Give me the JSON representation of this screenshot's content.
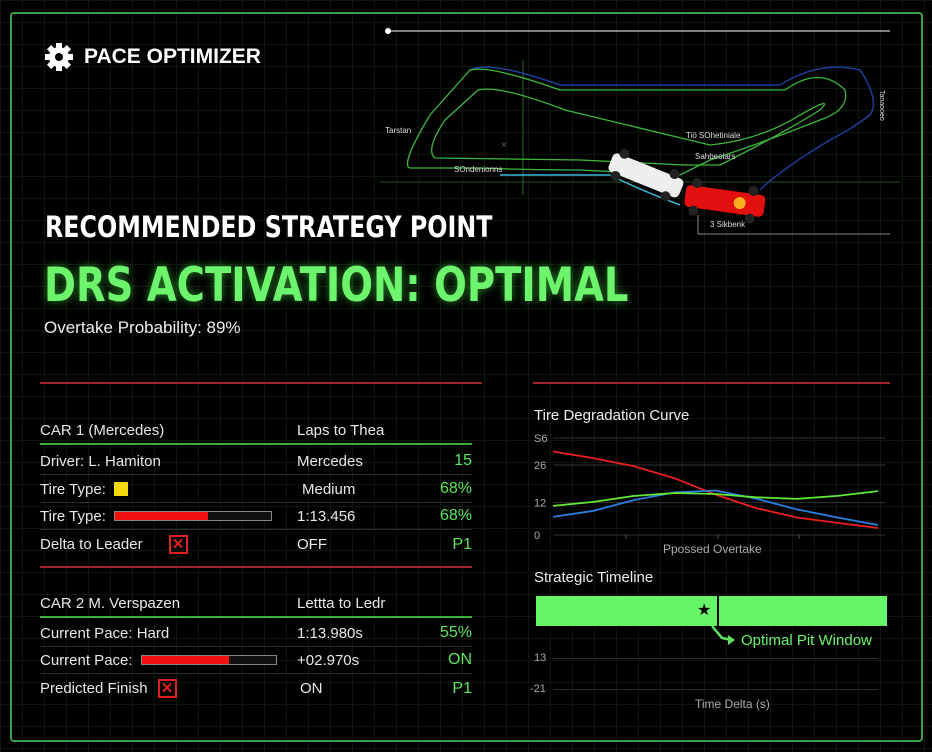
{
  "app": {
    "title": "PACE OPTIMIZER",
    "icon": "gear-icon"
  },
  "track": {
    "labels": [
      "Tarstan",
      "Tiö SOhetiniale",
      "Sahbeolars",
      "SOndenionns",
      "3 Sikbenk",
      "Tanaooeo"
    ]
  },
  "strategy": {
    "heading": "RECOMMENDED STRATEGY POINT",
    "recommendation": "DRS ACTIVATION: OPTIMAL",
    "probability": "Overtake Probability: 89%"
  },
  "car1": {
    "title": "CAR 1  (Mercedes)",
    "col2_header": "Laps to Thea",
    "rows": [
      {
        "label": "Driver: L. Hamiton",
        "mid": "Mercedes",
        "value": "15"
      },
      {
        "label": "Tire Type:",
        "mid": "Medium",
        "value": "68%",
        "tire_color": "#f5d80a"
      },
      {
        "label": "Tire Type:",
        "mid": "1:13.456",
        "value": "68%",
        "bar_fill": 0.6
      },
      {
        "label": "Delta to Leader",
        "mid": "OFF",
        "value": "P1",
        "icon": "x-box-icon"
      }
    ]
  },
  "car2": {
    "title": "CAR 2   M. Verspazen",
    "col2_header": "Lettta to Ledr",
    "rows": [
      {
        "label": "Current Pace:   Hard",
        "mid": "1:13.980s",
        "value": "55%"
      },
      {
        "label": "Current Pace:",
        "mid": "+02.970s",
        "value": "ON",
        "bar_fill": 0.65
      },
      {
        "label": "Predicted Finish",
        "mid": "ON",
        "value": "P1",
        "icon": "x-box-icon"
      }
    ]
  },
  "chart_data": [
    {
      "type": "line",
      "title": "Tire Degradation Curve",
      "xlabel": "Ppossed Overtake",
      "ylabel": "",
      "ylim": [
        0,
        36
      ],
      "yticks": [
        {
          "value": 0,
          "label": "0"
        },
        {
          "value": 12,
          "label": "12"
        },
        {
          "value": 26,
          "label": "26"
        },
        {
          "value": 36,
          "label": "S6"
        }
      ],
      "x": [
        0,
        1,
        2,
        3,
        4,
        5,
        6,
        7,
        8
      ],
      "grid": true,
      "series": [
        {
          "color": "#e82020",
          "values": [
            31,
            28.5,
            25.5,
            21,
            15,
            10,
            6.5,
            4.5,
            2.6
          ]
        },
        {
          "color": "#2b7de0",
          "values": [
            6.7,
            9,
            13,
            15.8,
            16.5,
            13.5,
            9.5,
            6.5,
            3.7
          ]
        },
        {
          "color": "#62e83a",
          "values": [
            10.8,
            12.3,
            14.5,
            15.6,
            15.2,
            14,
            13.4,
            14.5,
            16.3
          ]
        }
      ]
    },
    {
      "type": "timeline",
      "title": "Strategic Timeline",
      "xlabel": "Time Delta (s)",
      "yticks": [
        "13",
        "-21"
      ],
      "marker_position": 0.5,
      "annotation": "Optimal Pit Window",
      "bar_color": "#66f566"
    }
  ],
  "colors": {
    "accent": "#6cf56c",
    "alert": "#e02020",
    "frame": "#3f9f3f"
  }
}
